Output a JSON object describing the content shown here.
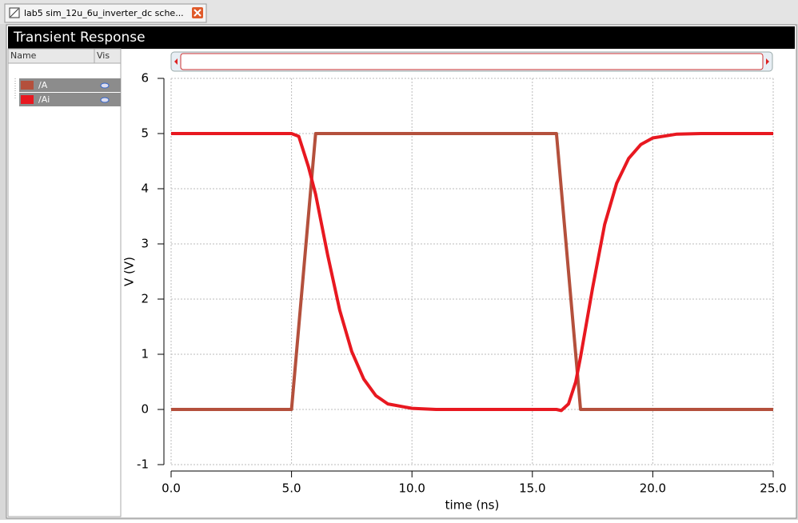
{
  "tab": {
    "title": "lab5 sim_12u_6u_inverter_dc sche..."
  },
  "legend_panel": {
    "columns": [
      "Name",
      "Vis"
    ]
  },
  "chart_data": {
    "type": "line",
    "title": "Transient Response",
    "x_label": "time (ns)",
    "y_label": "V (V)",
    "xlim": [
      0,
      25
    ],
    "ylim": [
      -1,
      6
    ],
    "xticks": [
      {
        "value": 0,
        "label": "0.0"
      },
      {
        "value": 5,
        "label": "5.0"
      },
      {
        "value": 10,
        "label": "10.0"
      },
      {
        "value": 15,
        "label": "15.0"
      },
      {
        "value": 20,
        "label": "20.0"
      },
      {
        "value": 25,
        "label": "25.0"
      }
    ],
    "yticks": [
      -1,
      0,
      1,
      2,
      3,
      4,
      5,
      6
    ],
    "grid": true,
    "series": [
      {
        "name": "/A",
        "color": "#b4503c",
        "x": [
          0,
          5,
          6,
          16,
          17,
          25
        ],
        "values": [
          0,
          0,
          5,
          5,
          0,
          0
        ]
      },
      {
        "name": "/Ai",
        "color": "#e81820",
        "x": [
          0,
          5,
          5.3,
          5.7,
          6,
          6.5,
          7,
          7.5,
          8,
          8.5,
          9,
          10,
          11,
          16,
          16.2,
          16.5,
          16.8,
          17,
          17.5,
          18,
          18.5,
          19,
          19.5,
          20,
          21,
          22,
          25
        ],
        "values": [
          5,
          5,
          4.95,
          4.4,
          3.9,
          2.8,
          1.8,
          1.05,
          0.55,
          0.25,
          0.1,
          0.02,
          0,
          0,
          -0.02,
          0.1,
          0.5,
          0.95,
          2.2,
          3.35,
          4.1,
          4.55,
          4.8,
          4.92,
          4.99,
          5,
          5
        ]
      }
    ]
  }
}
